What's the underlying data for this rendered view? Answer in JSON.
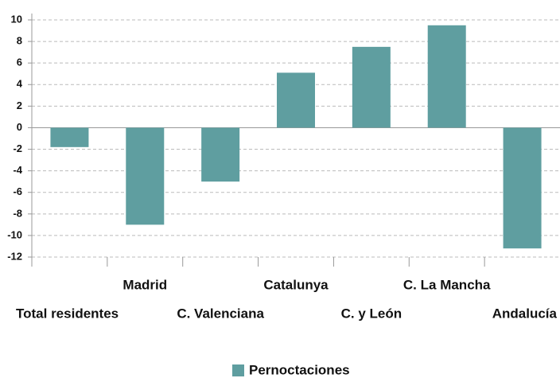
{
  "chart_data": {
    "type": "bar",
    "categories": [
      "Total  residentes",
      "Madrid",
      "C. Valenciana",
      "Catalunya",
      "C. y León",
      "C. La Mancha",
      "Andalucía"
    ],
    "series": [
      {
        "name": "Pernoctaciones",
        "color": "#5f9ea0",
        "values": [
          -1.8,
          -9,
          -5,
          5.1,
          7.5,
          9.5,
          -11.2
        ]
      }
    ],
    "ylim": [
      -12,
      10
    ],
    "yticks": [
      10,
      8,
      6,
      4,
      2,
      0,
      -2,
      -4,
      -6,
      -8,
      -10,
      -12
    ],
    "grid": true,
    "legend": "bottom"
  }
}
